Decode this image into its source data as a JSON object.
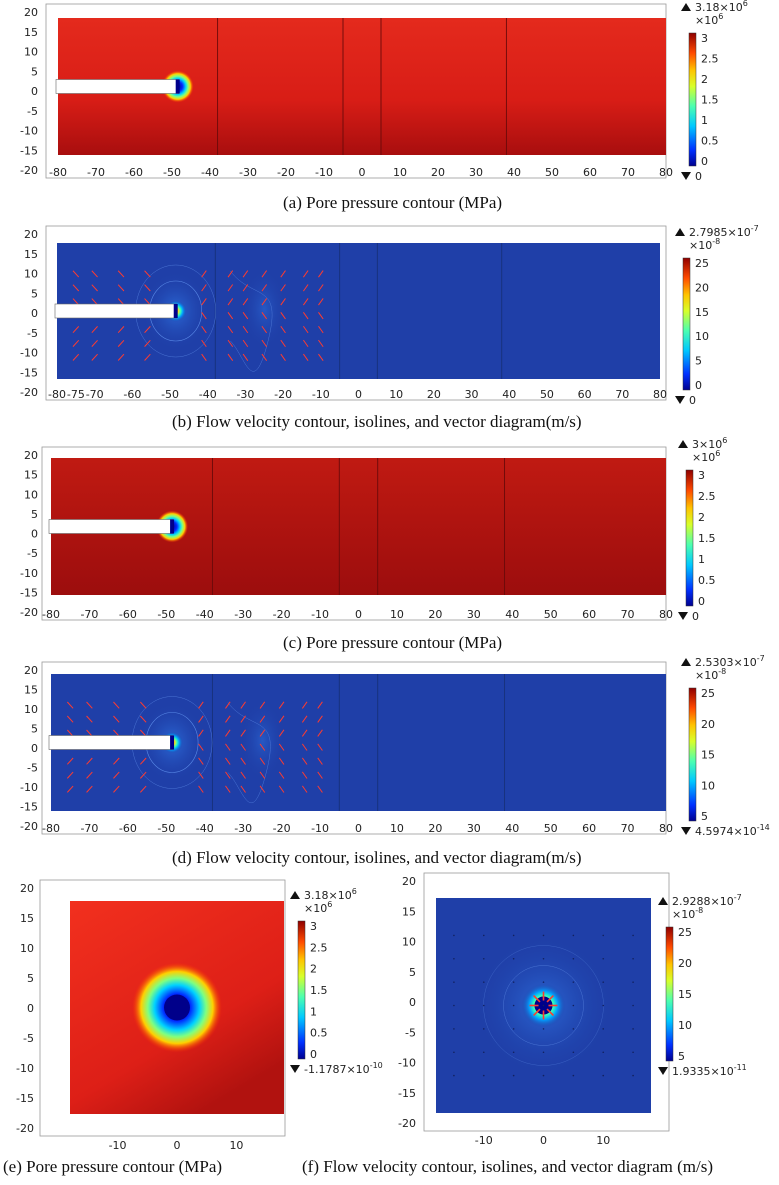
{
  "panels": [
    {
      "id": "a",
      "caption": "(a) Pore pressure contour (MPa)",
      "field": "pressure",
      "max_label": "3.18×10",
      "max_exp": "6",
      "mult_label": "×10",
      "mult_exp": "6",
      "min_label": "0",
      "min_exp": "",
      "colorbar_ticks": [
        "3",
        "2.5",
        "2",
        "1.5",
        "1",
        "0.5",
        "0"
      ],
      "x_ticks": [
        "-80",
        "-70",
        "-60",
        "-50",
        "-40",
        "-30",
        "-20",
        "-10",
        "0",
        "10",
        "20",
        "30",
        "40",
        "50",
        "60",
        "70",
        "80"
      ],
      "y_ticks": [
        "20",
        "15",
        "10",
        "5",
        "0",
        "-5",
        "-10",
        "-15",
        "-20"
      ]
    },
    {
      "id": "b",
      "caption": "(b) Flow velocity contour, isolines, and vector diagram(m/s)",
      "field": "velocity",
      "max_label": "2.7985×10",
      "max_exp": "-7",
      "mult_label": "×10",
      "mult_exp": "-8",
      "min_label": "0",
      "min_exp": "",
      "colorbar_ticks": [
        "25",
        "20",
        "15",
        "10",
        "5",
        "0"
      ],
      "x_ticks": [
        "-80",
        "-75",
        "-70",
        "-60",
        "-50",
        "-40",
        "-30",
        "-20",
        "-10",
        "0",
        "10",
        "20",
        "30",
        "40",
        "50",
        "60",
        "70",
        "80"
      ],
      "y_ticks": [
        "20",
        "15",
        "10",
        "5",
        "0",
        "-5",
        "-10",
        "-15",
        "-20"
      ]
    },
    {
      "id": "c",
      "caption": "(c) Pore pressure contour (MPa)",
      "field": "pressure",
      "max_label": "3×10",
      "max_exp": "6",
      "mult_label": "×10",
      "mult_exp": "6",
      "min_label": "0",
      "min_exp": "",
      "colorbar_ticks": [
        "3",
        "2.5",
        "2",
        "1.5",
        "1",
        "0.5",
        "0"
      ],
      "x_ticks": [
        "-80",
        "-70",
        "-60",
        "-50",
        "-40",
        "-30",
        "-20",
        "-10",
        "0",
        "10",
        "20",
        "30",
        "40",
        "50",
        "60",
        "70",
        "80"
      ],
      "y_ticks": [
        "20",
        "15",
        "10",
        "5",
        "0",
        "-5",
        "-10",
        "-15",
        "-20"
      ]
    },
    {
      "id": "d",
      "caption": "(d) Flow velocity contour, isolines, and vector diagram(m/s)",
      "field": "velocity",
      "max_label": "2.5303×10",
      "max_exp": "-7",
      "mult_label": "×10",
      "mult_exp": "-8",
      "min_label": "4.5974×10",
      "min_exp": "-14",
      "colorbar_ticks": [
        "25",
        "20",
        "15",
        "10",
        "5"
      ],
      "x_ticks": [
        "-80",
        "-70",
        "-60",
        "-50",
        "-40",
        "-30",
        "-20",
        "-10",
        "0",
        "10",
        "20",
        "30",
        "40",
        "50",
        "60",
        "70",
        "80"
      ],
      "y_ticks": [
        "20",
        "15",
        "10",
        "5",
        "0",
        "-5",
        "-10",
        "-15",
        "-20"
      ]
    },
    {
      "id": "e",
      "caption": "(e) Pore pressure contour (MPa)",
      "field": "pressure-square",
      "max_label": "3.18×10",
      "max_exp": "6",
      "mult_label": "×10",
      "mult_exp": "6",
      "min_label": "-1.1787×10",
      "min_exp": "-10",
      "colorbar_ticks": [
        "3",
        "2.5",
        "2",
        "1.5",
        "1",
        "0.5",
        "0"
      ],
      "x_ticks": [
        "-10",
        "0",
        "10"
      ],
      "y_ticks": [
        "20",
        "15",
        "10",
        "5",
        "0",
        "-5",
        "-10",
        "-15",
        "-20"
      ]
    },
    {
      "id": "f",
      "caption": "(f) Flow velocity contour, isolines, and vector diagram (m/s)",
      "field": "velocity-square",
      "max_label": "2.9288×10",
      "max_exp": "-7",
      "mult_label": "×10",
      "mult_exp": "-8",
      "min_label": "1.9335×10",
      "min_exp": "-11",
      "colorbar_ticks": [
        "25",
        "20",
        "15",
        "10",
        "5"
      ],
      "x_ticks": [
        "-10",
        "0",
        "10"
      ],
      "y_ticks": [
        "20",
        "15",
        "10",
        "5",
        "0",
        "-5",
        "-10",
        "-15",
        "-20"
      ]
    }
  ],
  "colors": {
    "pressure_high": "#e8231a",
    "pressure_dark": "#a30f0f",
    "velocity_bg": "#1f3fa8",
    "vector": "#ff3b2f",
    "borehole": "#ffffff"
  }
}
